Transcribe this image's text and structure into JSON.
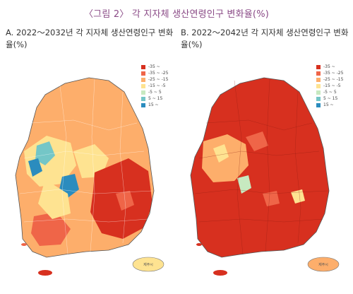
{
  "figure": {
    "title": "〈그림 2〉 각 지자체 생산연령인구 변화율(%)"
  },
  "panels": [
    {
      "id": "a",
      "title": "A. 2022～2032년 각 지자체 생산연령인구 변화율(%)",
      "dominant_class": "-25 ~ -15"
    },
    {
      "id": "b",
      "title": "B. 2022～2042년 각 지자체 생산연령인구 변화율(%)",
      "dominant_class": "-35 ~"
    }
  ],
  "legend": {
    "classes": [
      {
        "label": "-35 ~",
        "color": "#d7301f"
      },
      {
        "label": "-35 ~ -25",
        "color": "#ef6548"
      },
      {
        "label": "-25 ~ -15",
        "color": "#fdae6b"
      },
      {
        "label": "-15 ~ -5",
        "color": "#fee391"
      },
      {
        "label": "-5 ~ 5",
        "color": "#c7e9c0"
      },
      {
        "label": "5 ~ 15",
        "color": "#74c6c7"
      },
      {
        "label": "15 ~",
        "color": "#2b8cbe"
      }
    ]
  },
  "regions": {
    "jeju": "제주시"
  }
}
